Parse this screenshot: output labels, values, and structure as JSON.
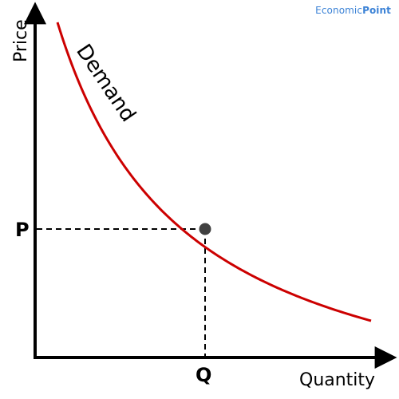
{
  "watermark": {
    "part1": "Economic",
    "part2": "Point"
  },
  "chart_data": {
    "type": "line",
    "title": "",
    "xlabel": "Quantity",
    "ylabel": "Price",
    "grid": false,
    "series": [
      {
        "name": "Demand",
        "color": "#cc0000",
        "curve": "downward-sloping, convex"
      }
    ],
    "point": {
      "x_label": "Q",
      "y_label": "P",
      "marker_color": "#404040",
      "guide_style": "dashed"
    },
    "axis_color": "#000000"
  }
}
